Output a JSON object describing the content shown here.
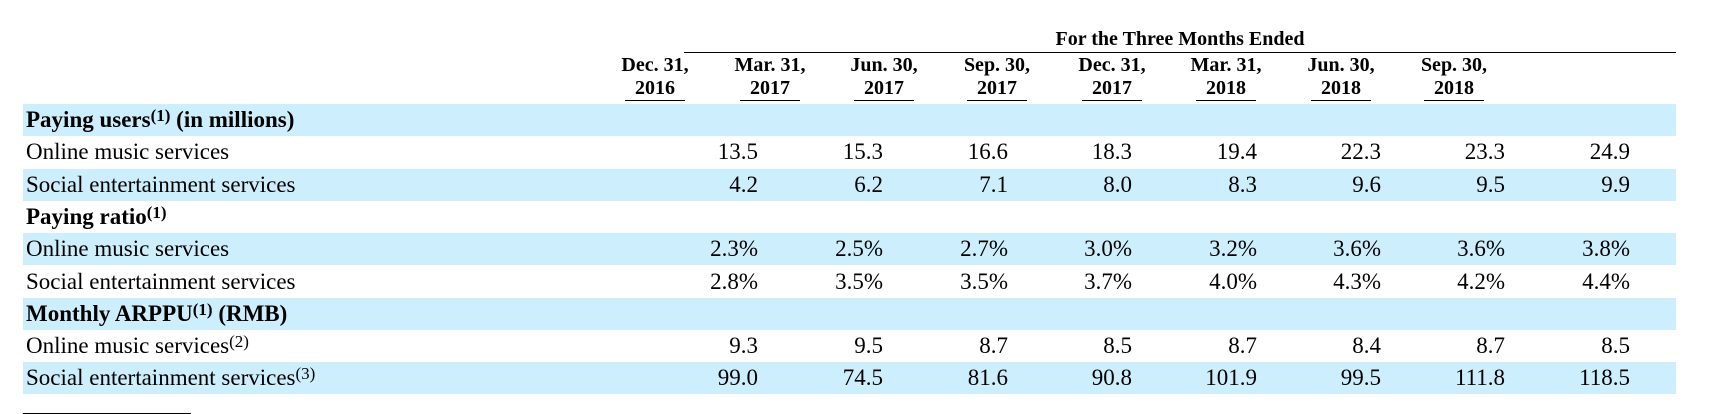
{
  "table": {
    "span_header": "For the Three Months Ended",
    "columns": [
      {
        "l1": "Dec. 31,",
        "l2": "2016"
      },
      {
        "l1": "Mar. 31,",
        "l2": "2017"
      },
      {
        "l1": "Jun. 30,",
        "l2": "2017"
      },
      {
        "l1": "Sep. 30,",
        "l2": "2017"
      },
      {
        "l1": "Dec. 31,",
        "l2": "2017"
      },
      {
        "l1": "Mar. 31,",
        "l2": "2018"
      },
      {
        "l1": "Jun. 30,",
        "l2": "2018"
      },
      {
        "l1": "Sep. 30,",
        "l2": "2018"
      }
    ],
    "rows": [
      {
        "kind": "section",
        "label": "Paying users",
        "fn": "(1)",
        "suffix": " (in millions)"
      },
      {
        "kind": "data",
        "label": "Online music services",
        "values": [
          "13.5",
          "15.3",
          "16.6",
          "18.3",
          "19.4",
          "22.3",
          "23.3",
          "24.9"
        ]
      },
      {
        "kind": "data",
        "label": "Social entertainment services",
        "values": [
          "4.2",
          "6.2",
          "7.1",
          "8.0",
          "8.3",
          "9.6",
          "9.5",
          "9.9"
        ]
      },
      {
        "kind": "section",
        "label": "Paying ratio",
        "fn": "(1)",
        "suffix": ""
      },
      {
        "kind": "data",
        "label": "Online music services",
        "values": [
          "2.3%",
          "2.5%",
          "2.7%",
          "3.0%",
          "3.2%",
          "3.6%",
          "3.6%",
          "3.8%"
        ]
      },
      {
        "kind": "data",
        "label": "Social entertainment services",
        "values": [
          "2.8%",
          "3.5%",
          "3.5%",
          "3.7%",
          "4.0%",
          "4.3%",
          "4.2%",
          "4.4%"
        ]
      },
      {
        "kind": "section",
        "label": "Monthly ARPPU",
        "fn": "(1)",
        "suffix": " (RMB)"
      },
      {
        "kind": "data",
        "label": "Online music services",
        "fn": "(2)",
        "values": [
          "9.3",
          "9.5",
          "8.7",
          "8.5",
          "8.7",
          "8.4",
          "8.7",
          "8.5"
        ]
      },
      {
        "kind": "data",
        "label": "Social entertainment services",
        "fn": "(3)",
        "values": [
          "99.0",
          "74.5",
          "81.6",
          "90.8",
          "101.9",
          "99.5",
          "111.8",
          "118.5"
        ]
      }
    ]
  },
  "colors": {
    "row_shade": "#cdeefc"
  }
}
